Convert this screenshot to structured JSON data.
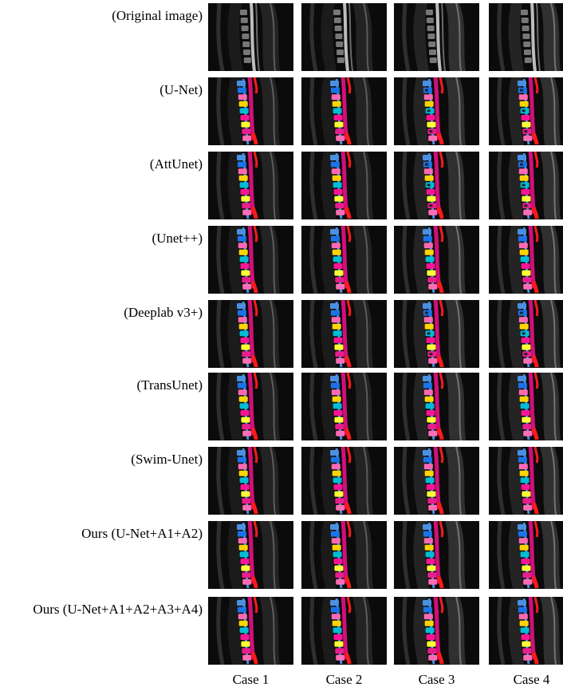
{
  "figure": {
    "rows": [
      {
        "label": "(Original image)",
        "type": "original"
      },
      {
        "label": "(U-Net)",
        "type": "seg",
        "quality": "noisy"
      },
      {
        "label": "(AttUnet)",
        "type": "seg",
        "quality": "noisy"
      },
      {
        "label": "(Unet++)",
        "type": "seg",
        "quality": "good"
      },
      {
        "label": "(Deeplab v3+)",
        "type": "seg",
        "quality": "noisy"
      },
      {
        "label": "(TransUnet)",
        "type": "seg",
        "quality": "good"
      },
      {
        "label": "(Swim-Unet)",
        "type": "seg",
        "quality": "good"
      },
      {
        "label": "Ours (U-Net+A1+A2)",
        "type": "seg",
        "quality": "good"
      },
      {
        "label": "Ours (U-Net+A1+A2+A3+A4)",
        "type": "seg",
        "quality": "best"
      }
    ],
    "columns": [
      {
        "label": "Case 1"
      },
      {
        "label": "Case 2"
      },
      {
        "label": "Case 3"
      },
      {
        "label": "Case 4"
      }
    ],
    "colors": {
      "vertebra_palette": [
        "#4a90e2",
        "#1a73e8",
        "#ff69b4",
        "#ffd400",
        "#00bcd4",
        "#ff1493",
        "#ffff33",
        "#e91e8c",
        "#ff6eb4"
      ],
      "cord": "#d0107a",
      "canal": "#ff1a1a"
    }
  }
}
